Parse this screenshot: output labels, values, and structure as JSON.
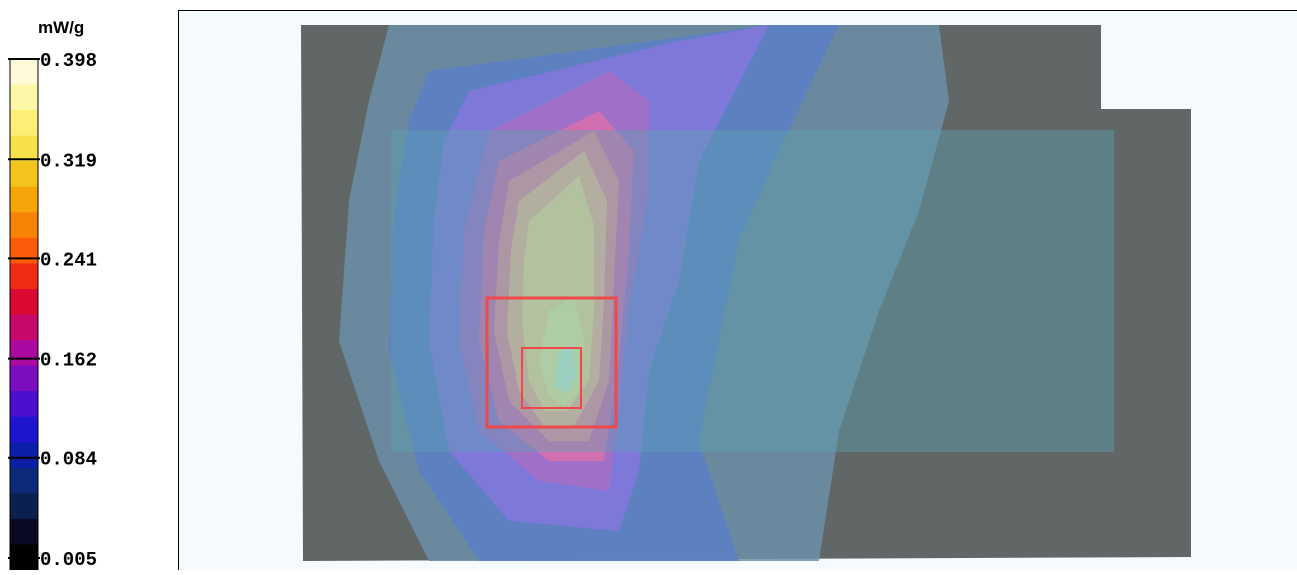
{
  "chart_data": {
    "type": "heatmap",
    "title": "",
    "colorbar": {
      "unit": "mW/g",
      "ticks": [
        0.398,
        0.319,
        0.241,
        0.162,
        0.084,
        0.005
      ],
      "tick_labels": [
        "0.398",
        "0.319",
        "0.241",
        "0.162",
        "0.084",
        "0.005"
      ],
      "range": [
        0.005,
        0.398
      ],
      "colors": [
        "#fefcd8",
        "#fdf8a8",
        "#fbef78",
        "#f6e04c",
        "#f4c41c",
        "#f6a609",
        "#f88206",
        "#fb5b0b",
        "#f02d14",
        "#dc0a32",
        "#c8086b",
        "#ab0aa1",
        "#7c0cbf",
        "#4c0ecf",
        "#1f14cf",
        "#0a1ea8",
        "#0c2a7a",
        "#0a2150",
        "#0a0a24",
        "#000000"
      ]
    },
    "max_value": 0.398,
    "peak_region": "zoom scan area (red squares)",
    "colors": {
      "background": "#f4fafd",
      "phantom": "#606766",
      "device_overlay": "#5f9eae",
      "zoom_box": "#f04848"
    }
  }
}
